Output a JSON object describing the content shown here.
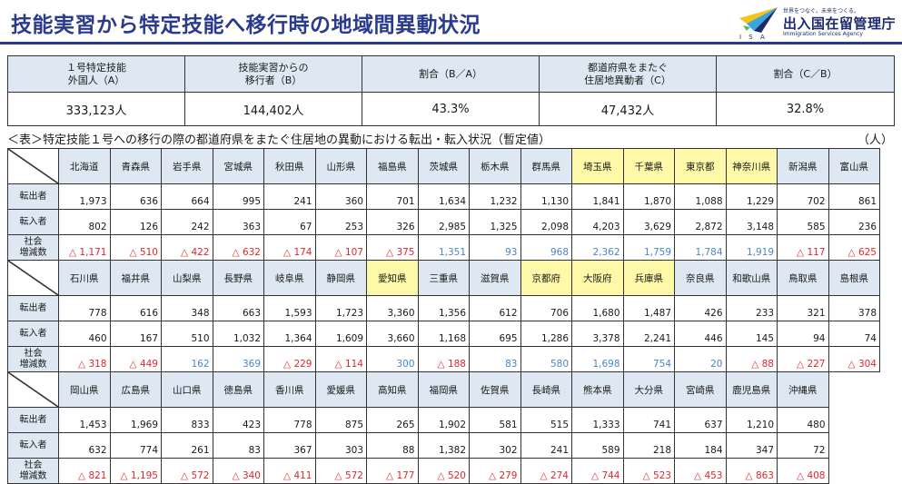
{
  "title": "技能実習から特定技能へ移行時の地域間異動状況",
  "logo": {
    "name": "出入国在留管理庁",
    "english": "Immigration Services Agency",
    "slogan": "世界をつなぐ。未来をつくる。",
    "mark_text": "I S A",
    "colors": [
      "#f4c416",
      "#3aa4dc",
      "#1e2b6b",
      "#5cb85c"
    ]
  },
  "summary": {
    "headers": [
      "１号特定技能\n外国人（A）",
      "技能実習からの\n移行者（B）",
      "割合（B／A）",
      "都道府県をまたぐ\n住居地異動者（C）",
      "割合（C／B）"
    ],
    "values": [
      "333,123人",
      "144,402人",
      "43.3%",
      "47,432人",
      "32.8%"
    ]
  },
  "table_caption": "＜表＞特定技能１号への移行の際の都道府県をまたぐ住居地の異動における転出・転入状況（暫定値）",
  "unit": "（人）",
  "row_labels": {
    "out": "転出者",
    "in": "転入者",
    "net": "社会\n増減数"
  },
  "colors": {
    "negative": "#e3262d",
    "positive": "#4a86c8",
    "highlight": "#fdf9a8",
    "header_bg": "#dde8f2",
    "title": "#2a3a8c"
  },
  "blocks": [
    {
      "prefs": [
        {
          "name": "北海道",
          "out": "1,973",
          "in": "802",
          "net": "△ 1,171",
          "net_sign": "neg",
          "hl": false
        },
        {
          "name": "青森県",
          "out": "636",
          "in": "126",
          "net": "△ 510",
          "net_sign": "neg",
          "hl": false
        },
        {
          "name": "岩手県",
          "out": "664",
          "in": "242",
          "net": "△ 422",
          "net_sign": "neg",
          "hl": false
        },
        {
          "name": "宮城県",
          "out": "995",
          "in": "363",
          "net": "△ 632",
          "net_sign": "neg",
          "hl": false
        },
        {
          "name": "秋田県",
          "out": "241",
          "in": "67",
          "net": "△ 174",
          "net_sign": "neg",
          "hl": false
        },
        {
          "name": "山形県",
          "out": "360",
          "in": "253",
          "net": "△ 107",
          "net_sign": "neg",
          "hl": false
        },
        {
          "name": "福島県",
          "out": "701",
          "in": "326",
          "net": "△ 375",
          "net_sign": "neg",
          "hl": false
        },
        {
          "name": "茨城県",
          "out": "1,634",
          "in": "2,985",
          "net": "1,351",
          "net_sign": "pos",
          "hl": false
        },
        {
          "name": "栃木県",
          "out": "1,232",
          "in": "1,325",
          "net": "93",
          "net_sign": "pos",
          "hl": false
        },
        {
          "name": "群馬県",
          "out": "1,130",
          "in": "2,098",
          "net": "968",
          "net_sign": "pos",
          "hl": false
        },
        {
          "name": "埼玉県",
          "out": "1,841",
          "in": "4,203",
          "net": "2,362",
          "net_sign": "pos",
          "hl": true
        },
        {
          "name": "千葉県",
          "out": "1,870",
          "in": "3,629",
          "net": "1,759",
          "net_sign": "pos",
          "hl": true
        },
        {
          "name": "東京都",
          "out": "1,088",
          "in": "2,872",
          "net": "1,784",
          "net_sign": "pos",
          "hl": true
        },
        {
          "name": "神奈川県",
          "out": "1,229",
          "in": "3,148",
          "net": "1,919",
          "net_sign": "pos",
          "hl": true
        },
        {
          "name": "新潟県",
          "out": "702",
          "in": "585",
          "net": "△ 117",
          "net_sign": "neg",
          "hl": false
        },
        {
          "name": "富山県",
          "out": "861",
          "in": "236",
          "net": "△ 625",
          "net_sign": "neg",
          "hl": false
        }
      ]
    },
    {
      "prefs": [
        {
          "name": "石川県",
          "out": "778",
          "in": "460",
          "net": "△ 318",
          "net_sign": "neg",
          "hl": false
        },
        {
          "name": "福井県",
          "out": "616",
          "in": "167",
          "net": "△ 449",
          "net_sign": "neg",
          "hl": false
        },
        {
          "name": "山梨県",
          "out": "348",
          "in": "510",
          "net": "162",
          "net_sign": "pos",
          "hl": false
        },
        {
          "name": "長野県",
          "out": "663",
          "in": "1,032",
          "net": "369",
          "net_sign": "pos",
          "hl": false
        },
        {
          "name": "岐阜県",
          "out": "1,593",
          "in": "1,364",
          "net": "△ 229",
          "net_sign": "neg",
          "hl": false
        },
        {
          "name": "静岡県",
          "out": "1,723",
          "in": "1,609",
          "net": "△ 114",
          "net_sign": "neg",
          "hl": false
        },
        {
          "name": "愛知県",
          "out": "3,360",
          "in": "3,660",
          "net": "300",
          "net_sign": "pos",
          "hl": true
        },
        {
          "name": "三重県",
          "out": "1,356",
          "in": "1,168",
          "net": "△ 188",
          "net_sign": "neg",
          "hl": false
        },
        {
          "name": "滋賀県",
          "out": "612",
          "in": "695",
          "net": "83",
          "net_sign": "pos",
          "hl": false
        },
        {
          "name": "京都府",
          "out": "706",
          "in": "1,286",
          "net": "580",
          "net_sign": "pos",
          "hl": true
        },
        {
          "name": "大阪府",
          "out": "1,680",
          "in": "3,378",
          "net": "1,698",
          "net_sign": "pos",
          "hl": true
        },
        {
          "name": "兵庫県",
          "out": "1,487",
          "in": "2,241",
          "net": "754",
          "net_sign": "pos",
          "hl": true
        },
        {
          "name": "奈良県",
          "out": "426",
          "in": "446",
          "net": "20",
          "net_sign": "pos",
          "hl": false
        },
        {
          "name": "和歌山県",
          "out": "233",
          "in": "145",
          "net": "△ 88",
          "net_sign": "neg",
          "hl": false
        },
        {
          "name": "鳥取県",
          "out": "321",
          "in": "94",
          "net": "△ 227",
          "net_sign": "neg",
          "hl": false
        },
        {
          "name": "島根県",
          "out": "378",
          "in": "74",
          "net": "△ 304",
          "net_sign": "neg",
          "hl": false
        }
      ]
    },
    {
      "prefs": [
        {
          "name": "岡山県",
          "out": "1,453",
          "in": "632",
          "net": "△ 821",
          "net_sign": "neg",
          "hl": false
        },
        {
          "name": "広島県",
          "out": "1,969",
          "in": "774",
          "net": "△ 1,195",
          "net_sign": "neg",
          "hl": false
        },
        {
          "name": "山口県",
          "out": "833",
          "in": "261",
          "net": "△ 572",
          "net_sign": "neg",
          "hl": false
        },
        {
          "name": "徳島県",
          "out": "423",
          "in": "83",
          "net": "△ 340",
          "net_sign": "neg",
          "hl": false
        },
        {
          "name": "香川県",
          "out": "778",
          "in": "367",
          "net": "△ 411",
          "net_sign": "neg",
          "hl": false
        },
        {
          "name": "愛媛県",
          "out": "875",
          "in": "303",
          "net": "△ 572",
          "net_sign": "neg",
          "hl": false
        },
        {
          "name": "高知県",
          "out": "265",
          "in": "88",
          "net": "△ 177",
          "net_sign": "neg",
          "hl": false
        },
        {
          "name": "福岡県",
          "out": "1,902",
          "in": "1,382",
          "net": "△ 520",
          "net_sign": "neg",
          "hl": false
        },
        {
          "name": "佐賀県",
          "out": "581",
          "in": "302",
          "net": "△ 279",
          "net_sign": "neg",
          "hl": false
        },
        {
          "name": "長崎県",
          "out": "515",
          "in": "241",
          "net": "△ 274",
          "net_sign": "neg",
          "hl": false
        },
        {
          "name": "熊本県",
          "out": "1,333",
          "in": "589",
          "net": "△ 744",
          "net_sign": "neg",
          "hl": false
        },
        {
          "name": "大分県",
          "out": "741",
          "in": "218",
          "net": "△ 523",
          "net_sign": "neg",
          "hl": false
        },
        {
          "name": "宮崎県",
          "out": "637",
          "in": "184",
          "net": "△ 453",
          "net_sign": "neg",
          "hl": false
        },
        {
          "name": "鹿児島県",
          "out": "1,210",
          "in": "347",
          "net": "△ 863",
          "net_sign": "neg",
          "hl": false
        },
        {
          "name": "沖縄県",
          "out": "480",
          "in": "72",
          "net": "△ 408",
          "net_sign": "neg",
          "hl": false
        }
      ]
    }
  ]
}
